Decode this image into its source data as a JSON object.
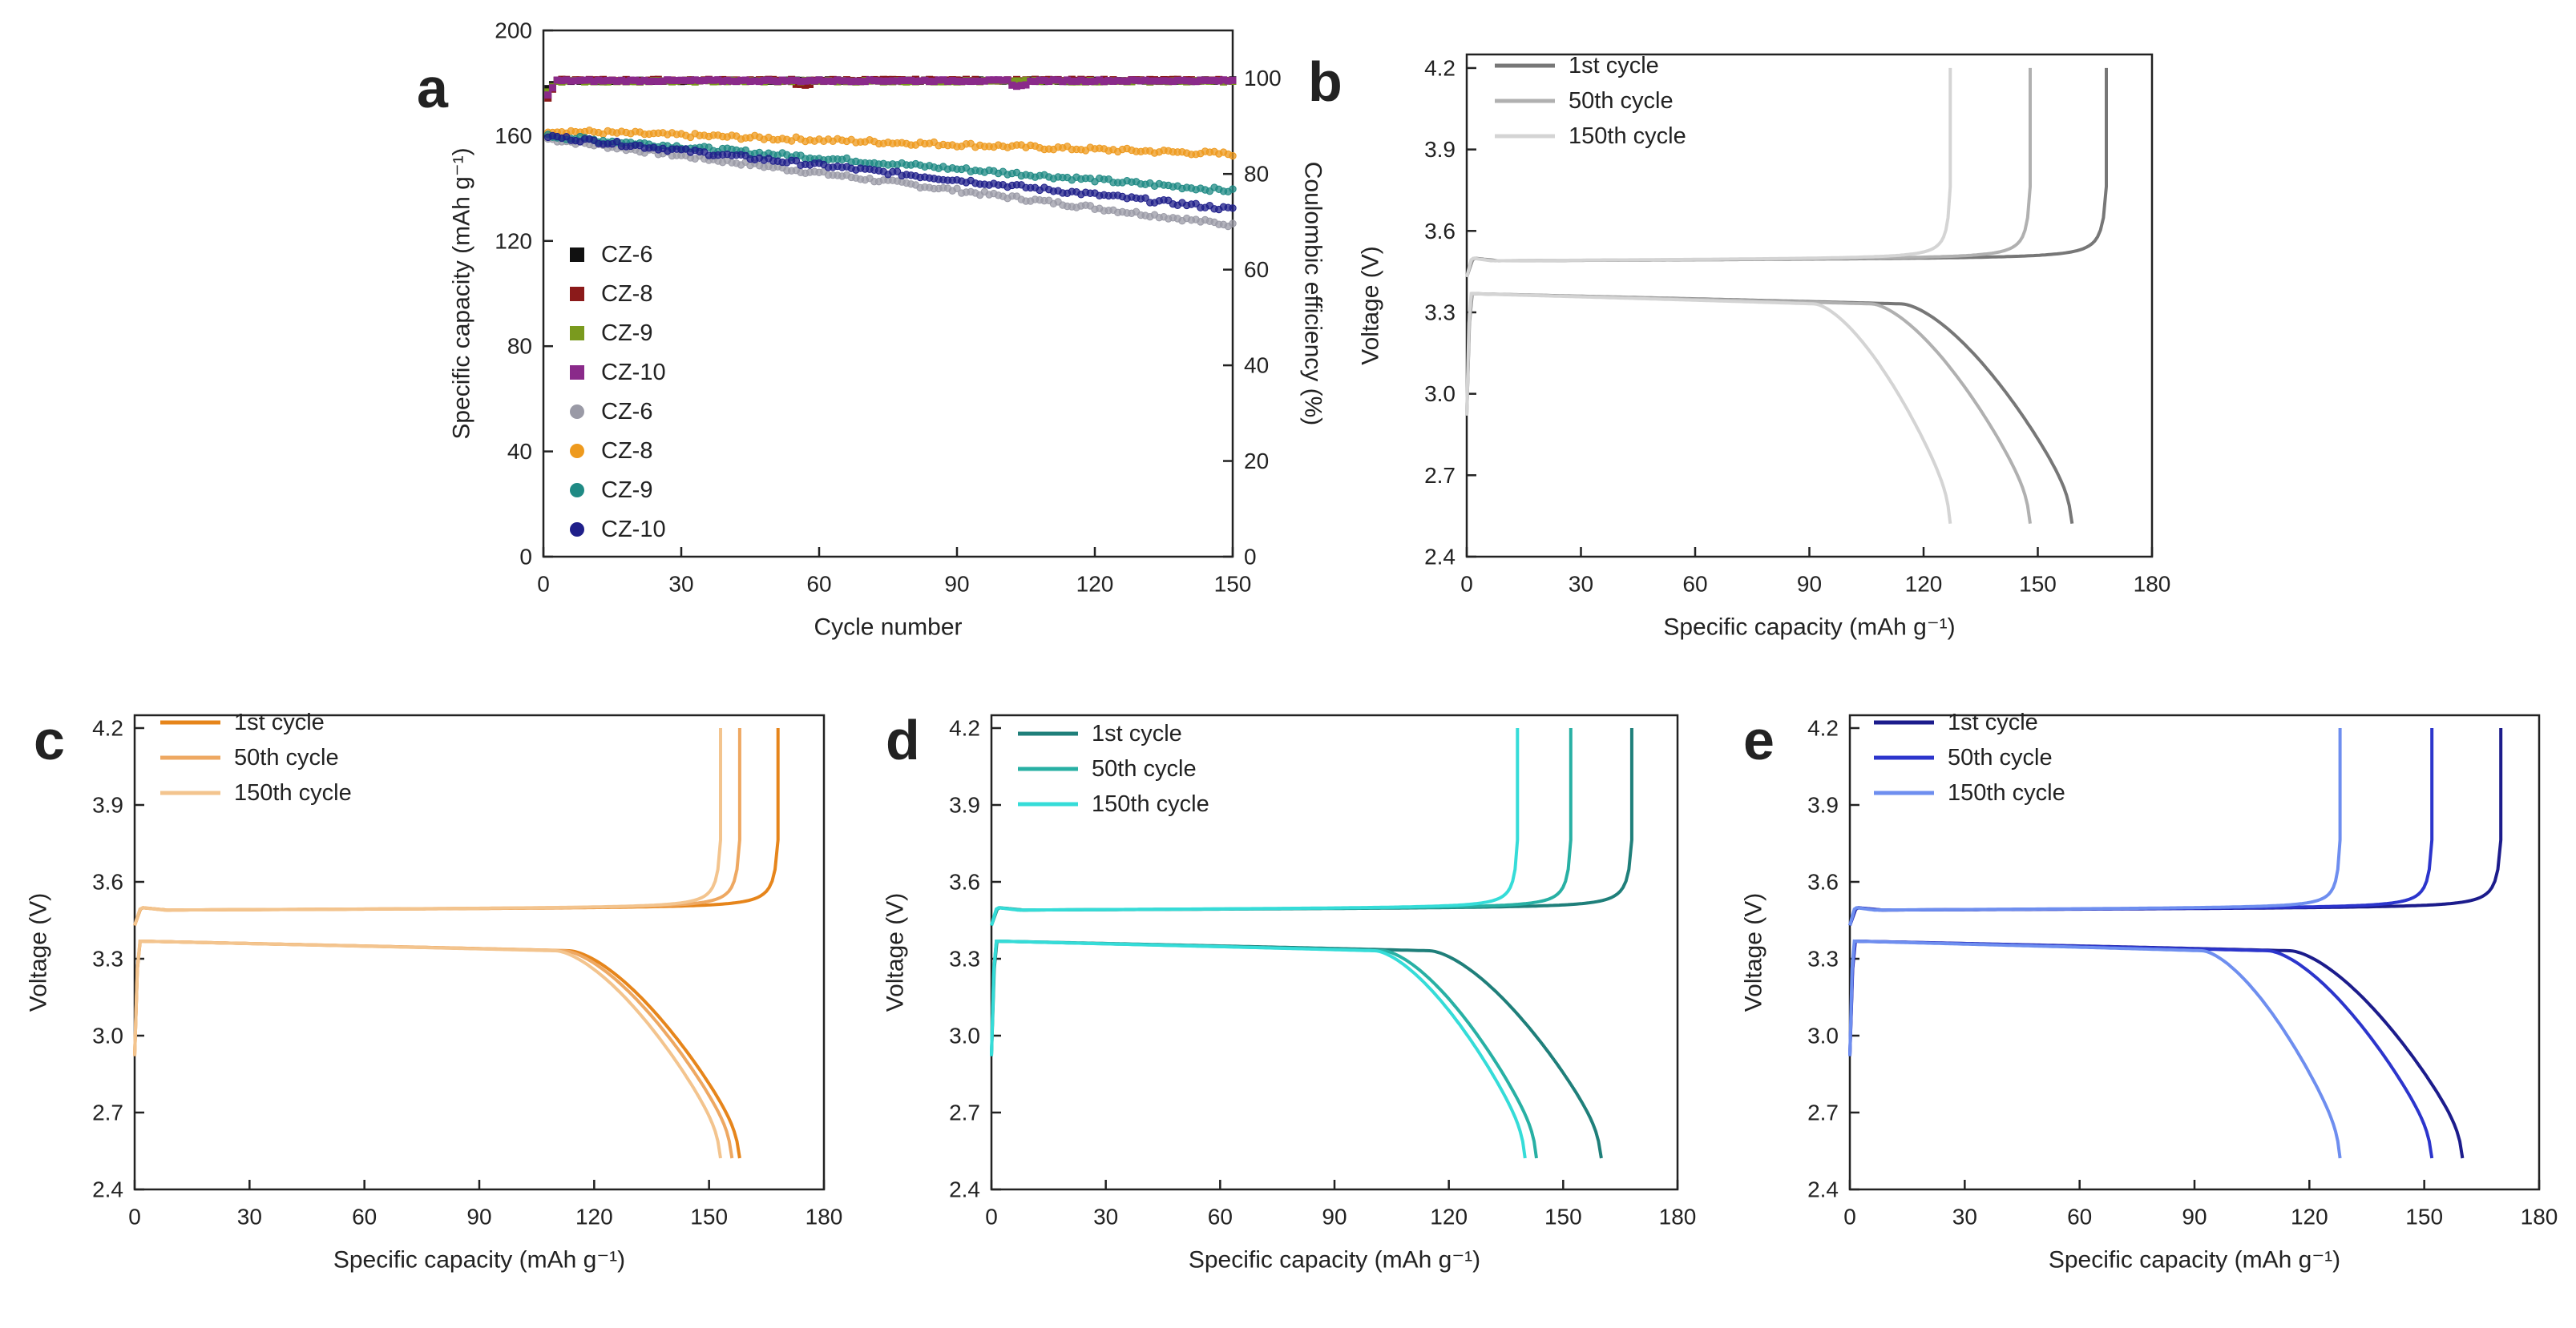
{
  "chart_data": [
    {
      "panel": "a",
      "type": "scatter",
      "xlabel": "Cycle number",
      "ylabel": "Specific capacity (mAh g⁻¹)",
      "y2label": "Coulombic efficiency (%)",
      "xlim": [
        0,
        150
      ],
      "ylim": [
        0,
        200
      ],
      "y2lim": [
        0,
        110
      ],
      "xticks": [
        "0",
        "30",
        "60",
        "90",
        "120",
        "150"
      ],
      "yticks": [
        "0",
        "40",
        "80",
        "120",
        "160",
        "200"
      ],
      "y2ticks": [
        "0",
        "20",
        "40",
        "60",
        "80",
        "100"
      ],
      "legend": [
        {
          "label": "CZ-6",
          "marker": "square",
          "color": "#111111"
        },
        {
          "label": "CZ-8",
          "marker": "square",
          "color": "#8b1a1a"
        },
        {
          "label": "CZ-9",
          "marker": "square",
          "color": "#7a9a1e"
        },
        {
          "label": "CZ-10",
          "marker": "square",
          "color": "#8a2a8a"
        },
        {
          "label": "CZ-6",
          "marker": "circle",
          "color": "#9a9aa6"
        },
        {
          "label": "CZ-8",
          "marker": "circle",
          "color": "#ee9a1e"
        },
        {
          "label": "CZ-9",
          "marker": "circle",
          "color": "#1f8a84"
        },
        {
          "label": "CZ-10",
          "marker": "circle",
          "color": "#1f1f8a"
        }
      ],
      "series": [
        {
          "name": "CZ-6",
          "kind": "efficiency",
          "axis": "y2",
          "color": "#111111",
          "ce_start": 97,
          "ce_value": 99.5,
          "drop_cycle": null
        },
        {
          "name": "CZ-8",
          "kind": "efficiency",
          "axis": "y2",
          "color": "#8b1a1a",
          "ce_start": 94,
          "ce_value": 99.6,
          "drop_cycle": 55
        },
        {
          "name": "CZ-9",
          "kind": "efficiency",
          "axis": "y2",
          "color": "#7a9a1e",
          "ce_start": 96,
          "ce_value": 99.4,
          "drop_cycle": null
        },
        {
          "name": "CZ-10",
          "kind": "efficiency",
          "axis": "y2",
          "color": "#8a2a8a",
          "ce_start": 95,
          "ce_value": 99.5,
          "drop_cycle": 102
        },
        {
          "name": "CZ-6",
          "kind": "capacity",
          "axis": "y",
          "color": "#9a9aa6",
          "start": 159,
          "end": 126
        },
        {
          "name": "CZ-8",
          "kind": "capacity",
          "axis": "y",
          "color": "#ee9a1e",
          "start": 162,
          "end": 153
        },
        {
          "name": "CZ-9",
          "kind": "capacity",
          "axis": "y",
          "color": "#1f8a84",
          "start": 160,
          "end": 139
        },
        {
          "name": "CZ-10",
          "kind": "capacity",
          "axis": "y",
          "color": "#1f1f8a",
          "start": 160,
          "end": 132
        }
      ]
    },
    {
      "panel": "b",
      "type": "line",
      "xlabel": "Specific capacity (mAh g⁻¹)",
      "ylabel": "Voltage (V)",
      "xlim": [
        0,
        180
      ],
      "ylim": [
        2.4,
        4.25
      ],
      "xticks": [
        "0",
        "30",
        "60",
        "90",
        "120",
        "150",
        "180"
      ],
      "yticks": [
        "2.4",
        "2.7",
        "3.0",
        "3.3",
        "3.6",
        "3.9",
        "4.2"
      ],
      "series": [
        {
          "name": "1st cycle",
          "color": "#777777",
          "charge_capacity": 168,
          "discharge_capacity": 159
        },
        {
          "name": "50th cycle",
          "color": "#b0b0b0",
          "charge_capacity": 148,
          "discharge_capacity": 148
        },
        {
          "name": "150th cycle",
          "color": "#d4d4d4",
          "charge_capacity": 127,
          "discharge_capacity": 127
        }
      ]
    },
    {
      "panel": "c",
      "type": "line",
      "xlabel": "Specific capacity (mAh g⁻¹)",
      "ylabel": "Voltage (V)",
      "xlim": [
        0,
        180
      ],
      "ylim": [
        2.4,
        4.25
      ],
      "xticks": [
        "0",
        "30",
        "60",
        "90",
        "120",
        "150",
        "180"
      ],
      "yticks": [
        "2.4",
        "2.7",
        "3.0",
        "3.3",
        "3.6",
        "3.9",
        "4.2"
      ],
      "series": [
        {
          "name": "1st cycle",
          "color": "#e6851b",
          "charge_capacity": 168,
          "discharge_capacity": 158
        },
        {
          "name": "50th cycle",
          "color": "#eea862",
          "charge_capacity": 158,
          "discharge_capacity": 156
        },
        {
          "name": "150th cycle",
          "color": "#f3c48e",
          "charge_capacity": 153,
          "discharge_capacity": 153
        }
      ]
    },
    {
      "panel": "d",
      "type": "line",
      "xlabel": "Specific capacity (mAh g⁻¹)",
      "ylabel": "Voltage (V)",
      "xlim": [
        0,
        180
      ],
      "ylim": [
        2.4,
        4.25
      ],
      "xticks": [
        "0",
        "30",
        "60",
        "90",
        "120",
        "150",
        "180"
      ],
      "yticks": [
        "2.4",
        "2.7",
        "3.0",
        "3.3",
        "3.6",
        "3.9",
        "4.2"
      ],
      "series": [
        {
          "name": "1st cycle",
          "color": "#1f7f7a",
          "charge_capacity": 168,
          "discharge_capacity": 160
        },
        {
          "name": "50th cycle",
          "color": "#28b0a4",
          "charge_capacity": 152,
          "discharge_capacity": 143
        },
        {
          "name": "150th cycle",
          "color": "#35dcd8",
          "charge_capacity": 138,
          "discharge_capacity": 140
        }
      ]
    },
    {
      "panel": "e",
      "type": "line",
      "xlabel": "Specific capacity (mAh g⁻¹)",
      "ylabel": "Voltage (V)",
      "xlim": [
        0,
        180
      ],
      "ylim": [
        2.4,
        4.25
      ],
      "xticks": [
        "0",
        "30",
        "60",
        "90",
        "120",
        "150",
        "180"
      ],
      "yticks": [
        "2.4",
        "2.7",
        "3.0",
        "3.3",
        "3.6",
        "3.9",
        "4.2"
      ],
      "series": [
        {
          "name": "1st cycle",
          "color": "#1c1c8c",
          "charge_capacity": 170,
          "discharge_capacity": 160
        },
        {
          "name": "50th cycle",
          "color": "#2c35cc",
          "charge_capacity": 152,
          "discharge_capacity": 152
        },
        {
          "name": "150th cycle",
          "color": "#6e8eef",
          "charge_capacity": 128,
          "discharge_capacity": 128
        }
      ]
    }
  ]
}
